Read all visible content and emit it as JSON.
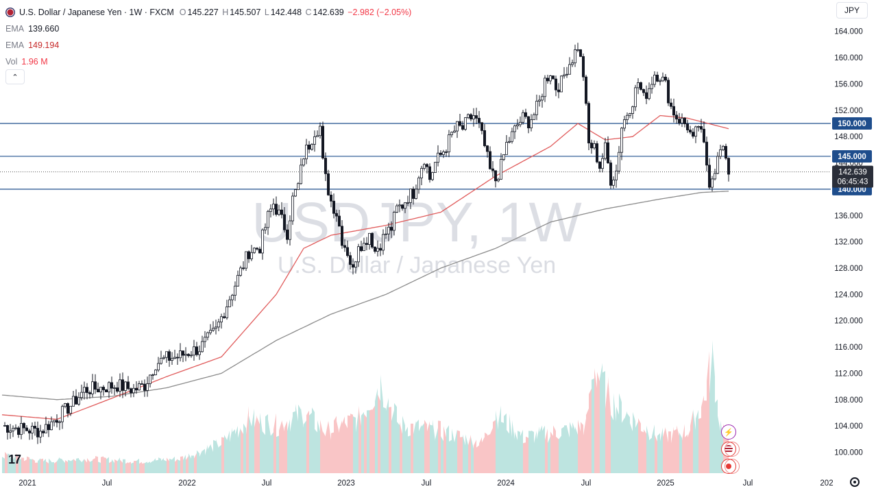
{
  "header": {
    "title": "U.S. Dollar / Japanese Yen · 1W · FXCM",
    "ohlc": {
      "o_label": "O",
      "o": "145.227",
      "h_label": "H",
      "h": "145.507",
      "l_label": "L",
      "l": "142.448",
      "c_label": "C",
      "c": "142.639",
      "change": "−2.982 (−2.05%)"
    },
    "ema1": {
      "label": "EMA",
      "value": "139.660"
    },
    "ema2": {
      "label": "EMA",
      "value": "149.194"
    },
    "vol": {
      "label": "Vol",
      "value": "1.96 M"
    },
    "collapse_icon": "chevron-up-icon",
    "currency_button": "JPY"
  },
  "watermark": {
    "symbol": "USDJPY, 1W",
    "description": "U.S. Dollar / Japanese Yen"
  },
  "colors": {
    "up": "#26a69a",
    "down": "#ef5350",
    "ema_fast": "#e05a5a",
    "ema_slow": "#8a8a8a",
    "hline": "#1e4d8c",
    "vol_up": "#b2dfdb",
    "vol_down": "#f8bbbc"
  },
  "chart_data": {
    "type": "candlestick",
    "y_axis": {
      "min": 98,
      "max": 165,
      "ticks": [
        100,
        104,
        108,
        112,
        116,
        120,
        124,
        128,
        132,
        136,
        140,
        144,
        148,
        152,
        156,
        160,
        164
      ],
      "tick_labels": [
        "100.000",
        "104.000",
        "108.000",
        "112.000",
        "116.000",
        "120.000",
        "124.000",
        "128.000",
        "132.000",
        "136.000",
        "140.000",
        "144.000",
        "148.000",
        "152.000",
        "156.000",
        "160.000",
        "164.000"
      ]
    },
    "x_axis": {
      "labels": [
        "2021",
        "Jul",
        "2022",
        "Jul",
        "2023",
        "Jul",
        "2024",
        "Jul",
        "2025",
        "Jul",
        "202"
      ]
    },
    "horizontal_lines": [
      {
        "value": 150,
        "label": "150.000"
      },
      {
        "value": 145,
        "label": "145.000"
      },
      {
        "value": 140,
        "label": "140.000"
      }
    ],
    "last_price": {
      "value": 142.639,
      "label": "142.639",
      "countdown": "06:45:43"
    },
    "price_path": [
      [
        0,
        104
      ],
      [
        8,
        103.5
      ],
      [
        14,
        103.2
      ],
      [
        18,
        104.5
      ],
      [
        22,
        106
      ],
      [
        26,
        107.5
      ],
      [
        30,
        109.5
      ],
      [
        36,
        109.8
      ],
      [
        42,
        110.2
      ],
      [
        48,
        109.5
      ],
      [
        52,
        110.2
      ],
      [
        56,
        113.5
      ],
      [
        60,
        114.3
      ],
      [
        64,
        114.5
      ],
      [
        68,
        115.2
      ],
      [
        72,
        115.8
      ],
      [
        78,
        118.5
      ],
      [
        82,
        122.5
      ],
      [
        86,
        126.5
      ],
      [
        90,
        130.5
      ],
      [
        94,
        131.2
      ],
      [
        97,
        135.8
      ],
      [
        99,
        137.8
      ],
      [
        101,
        136.2
      ],
      [
        104,
        133.4
      ],
      [
        106,
        138.5
      ],
      [
        108,
        140.5
      ],
      [
        110,
        145.2
      ],
      [
        112,
        146.8
      ],
      [
        114,
        148.9
      ],
      [
        116,
        149.5
      ],
      [
        117,
        144.0
      ],
      [
        118,
        141.6
      ],
      [
        120,
        138.2
      ],
      [
        122,
        136.4
      ],
      [
        124,
        132.4
      ],
      [
        126,
        130.5
      ],
      [
        128,
        127.5
      ],
      [
        130,
        132.0
      ],
      [
        132,
        131.5
      ],
      [
        134,
        133.5
      ],
      [
        136,
        130.6
      ],
      [
        138,
        131.8
      ],
      [
        140,
        133.3
      ],
      [
        142,
        134.1
      ],
      [
        144,
        137.0
      ],
      [
        146,
        137.6
      ],
      [
        148,
        138.9
      ],
      [
        150,
        139.5
      ],
      [
        152,
        142.4
      ],
      [
        154,
        144.8
      ],
      [
        156,
        141.6
      ],
      [
        158,
        144.0
      ],
      [
        160,
        145.2
      ],
      [
        162,
        146.5
      ],
      [
        164,
        148.3
      ],
      [
        166,
        149.4
      ],
      [
        168,
        149.2
      ],
      [
        170,
        150.5
      ],
      [
        172,
        151.2
      ],
      [
        174,
        149.5
      ],
      [
        176,
        146.5
      ],
      [
        178,
        142.8
      ],
      [
        180,
        141.4
      ],
      [
        182,
        143.5
      ],
      [
        184,
        146.8
      ],
      [
        186,
        148.2
      ],
      [
        188,
        149.8
      ],
      [
        190,
        150.8
      ],
      [
        192,
        150.3
      ],
      [
        194,
        151.4
      ],
      [
        196,
        153.2
      ],
      [
        198,
        156.5
      ],
      [
        200,
        157.9
      ],
      [
        202,
        155.5
      ],
      [
        204,
        156.2
      ],
      [
        206,
        158.5
      ],
      [
        208,
        159.9
      ],
      [
        210,
        161.8
      ],
      [
        212,
        157.5
      ],
      [
        214,
        146.8
      ],
      [
        216,
        146.2
      ],
      [
        218,
        143.5
      ],
      [
        220,
        146.2
      ],
      [
        222,
        141.5
      ],
      [
        224,
        142.8
      ],
      [
        226,
        149.5
      ],
      [
        228,
        151.6
      ],
      [
        230,
        153.5
      ],
      [
        232,
        156.3
      ],
      [
        234,
        153.8
      ],
      [
        236,
        155.5
      ],
      [
        238,
        157.6
      ],
      [
        240,
        157.3
      ],
      [
        242,
        155.8
      ],
      [
        244,
        152.5
      ],
      [
        246,
        151.0
      ],
      [
        248,
        150.3
      ],
      [
        250,
        149.6
      ],
      [
        252,
        147.2
      ],
      [
        254,
        149.8
      ],
      [
        256,
        146.5
      ],
      [
        258,
        141.2
      ],
      [
        260,
        143.2
      ],
      [
        262,
        145.8
      ],
      [
        264,
        145.2
      ],
      [
        265,
        142.6
      ]
    ],
    "ema_fast": [
      [
        0,
        105.7
      ],
      [
        20,
        105.0
      ],
      [
        40,
        108.2
      ],
      [
        60,
        111.5
      ],
      [
        80,
        114.5
      ],
      [
        100,
        124.0
      ],
      [
        110,
        131.0
      ],
      [
        120,
        133.0
      ],
      [
        140,
        134.5
      ],
      [
        160,
        136.5
      ],
      [
        180,
        142.0
      ],
      [
        200,
        146.5
      ],
      [
        210,
        150.0
      ],
      [
        220,
        147.5
      ],
      [
        230,
        148.0
      ],
      [
        240,
        151.2
      ],
      [
        250,
        150.8
      ],
      [
        265,
        149.2
      ]
    ],
    "ema_slow": [
      [
        0,
        108.7
      ],
      [
        20,
        108.0
      ],
      [
        40,
        108.5
      ],
      [
        60,
        109.8
      ],
      [
        80,
        112.0
      ],
      [
        100,
        117.0
      ],
      [
        120,
        121.0
      ],
      [
        140,
        124.0
      ],
      [
        160,
        128.0
      ],
      [
        180,
        131.0
      ],
      [
        200,
        135.0
      ],
      [
        220,
        137.0
      ],
      [
        240,
        138.5
      ],
      [
        255,
        139.5
      ],
      [
        265,
        139.7
      ]
    ],
    "volume_profile": [
      [
        0,
        0.15
      ],
      [
        15,
        0.1
      ],
      [
        30,
        0.12
      ],
      [
        50,
        0.1
      ],
      [
        65,
        0.12
      ],
      [
        80,
        0.25
      ],
      [
        90,
        0.45
      ],
      [
        100,
        0.4
      ],
      [
        110,
        0.5
      ],
      [
        118,
        0.35
      ],
      [
        130,
        0.45
      ],
      [
        138,
        0.75
      ],
      [
        145,
        0.4
      ],
      [
        160,
        0.35
      ],
      [
        175,
        0.25
      ],
      [
        180,
        0.5
      ],
      [
        190,
        0.3
      ],
      [
        205,
        0.35
      ],
      [
        213,
        0.4
      ],
      [
        216,
        0.9
      ],
      [
        222,
        0.6
      ],
      [
        230,
        0.45
      ],
      [
        240,
        0.3
      ],
      [
        250,
        0.35
      ],
      [
        256,
        0.6
      ],
      [
        259,
        0.95
      ],
      [
        262,
        0.4
      ],
      [
        265,
        0.3
      ]
    ]
  }
}
